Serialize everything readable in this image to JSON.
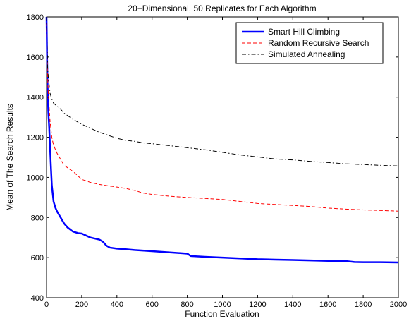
{
  "chart_data": {
    "type": "line",
    "title": "20−Dimensional, 50 Replicates for Each Algorithm",
    "xlabel": "Function Evaluation",
    "ylabel": "Mean of The Search Results",
    "xlim": [
      0,
      2000
    ],
    "ylim": [
      400,
      1800
    ],
    "xticks": [
      0,
      200,
      400,
      600,
      800,
      1000,
      1200,
      1400,
      1600,
      1800,
      2000
    ],
    "yticks": [
      400,
      600,
      800,
      1000,
      1200,
      1400,
      1600,
      1800
    ],
    "grid": false,
    "legend_position": "top-right",
    "series": [
      {
        "name": "Smart Hill Climbing",
        "color": "#0000ff",
        "style": "solid",
        "x": [
          0,
          3,
          6,
          10,
          15,
          20,
          25,
          30,
          40,
          50,
          60,
          80,
          100,
          120,
          150,
          180,
          200,
          250,
          300,
          320,
          340,
          360,
          400,
          450,
          500,
          600,
          700,
          800,
          820,
          900,
          1000,
          1100,
          1200,
          1300,
          1400,
          1500,
          1600,
          1700,
          1750,
          1800,
          1900,
          2000
        ],
        "y": [
          1800,
          1600,
          1450,
          1330,
          1250,
          1150,
          1050,
          960,
          880,
          850,
          830,
          800,
          770,
          750,
          730,
          722,
          720,
          700,
          690,
          680,
          660,
          650,
          645,
          642,
          638,
          632,
          626,
          620,
          608,
          604,
          600,
          596,
          592,
          590,
          588,
          586,
          584,
          583,
          578,
          577,
          577,
          576
        ]
      },
      {
        "name": "Random Recursive Search",
        "color": "#ff0000",
        "style": "dashed",
        "x": [
          0,
          3,
          6,
          10,
          15,
          20,
          30,
          40,
          60,
          80,
          100,
          150,
          200,
          250,
          300,
          350,
          400,
          450,
          500,
          550,
          600,
          700,
          800,
          900,
          1000,
          1100,
          1200,
          1300,
          1400,
          1500,
          1600,
          1700,
          1800,
          1900,
          2000
        ],
        "y": [
          1800,
          1600,
          1500,
          1420,
          1350,
          1280,
          1200,
          1160,
          1120,
          1090,
          1060,
          1030,
          990,
          975,
          965,
          958,
          952,
          945,
          935,
          922,
          915,
          906,
          900,
          895,
          890,
          880,
          870,
          865,
          860,
          855,
          847,
          842,
          838,
          835,
          832
        ]
      },
      {
        "name": "Simulated Annealing",
        "color": "#000000",
        "style": "dashdot",
        "x": [
          0,
          3,
          6,
          10,
          15,
          20,
          30,
          40,
          60,
          80,
          100,
          150,
          200,
          250,
          300,
          350,
          400,
          450,
          500,
          550,
          600,
          700,
          800,
          900,
          1000,
          1100,
          1200,
          1300,
          1400,
          1500,
          1600,
          1700,
          1800,
          1900,
          2000
        ],
        "y": [
          1800,
          1650,
          1550,
          1500,
          1460,
          1420,
          1390,
          1370,
          1355,
          1340,
          1320,
          1290,
          1265,
          1245,
          1225,
          1210,
          1195,
          1185,
          1180,
          1172,
          1168,
          1158,
          1148,
          1138,
          1125,
          1112,
          1102,
          1092,
          1087,
          1080,
          1074,
          1068,
          1064,
          1060,
          1057
        ]
      }
    ]
  }
}
